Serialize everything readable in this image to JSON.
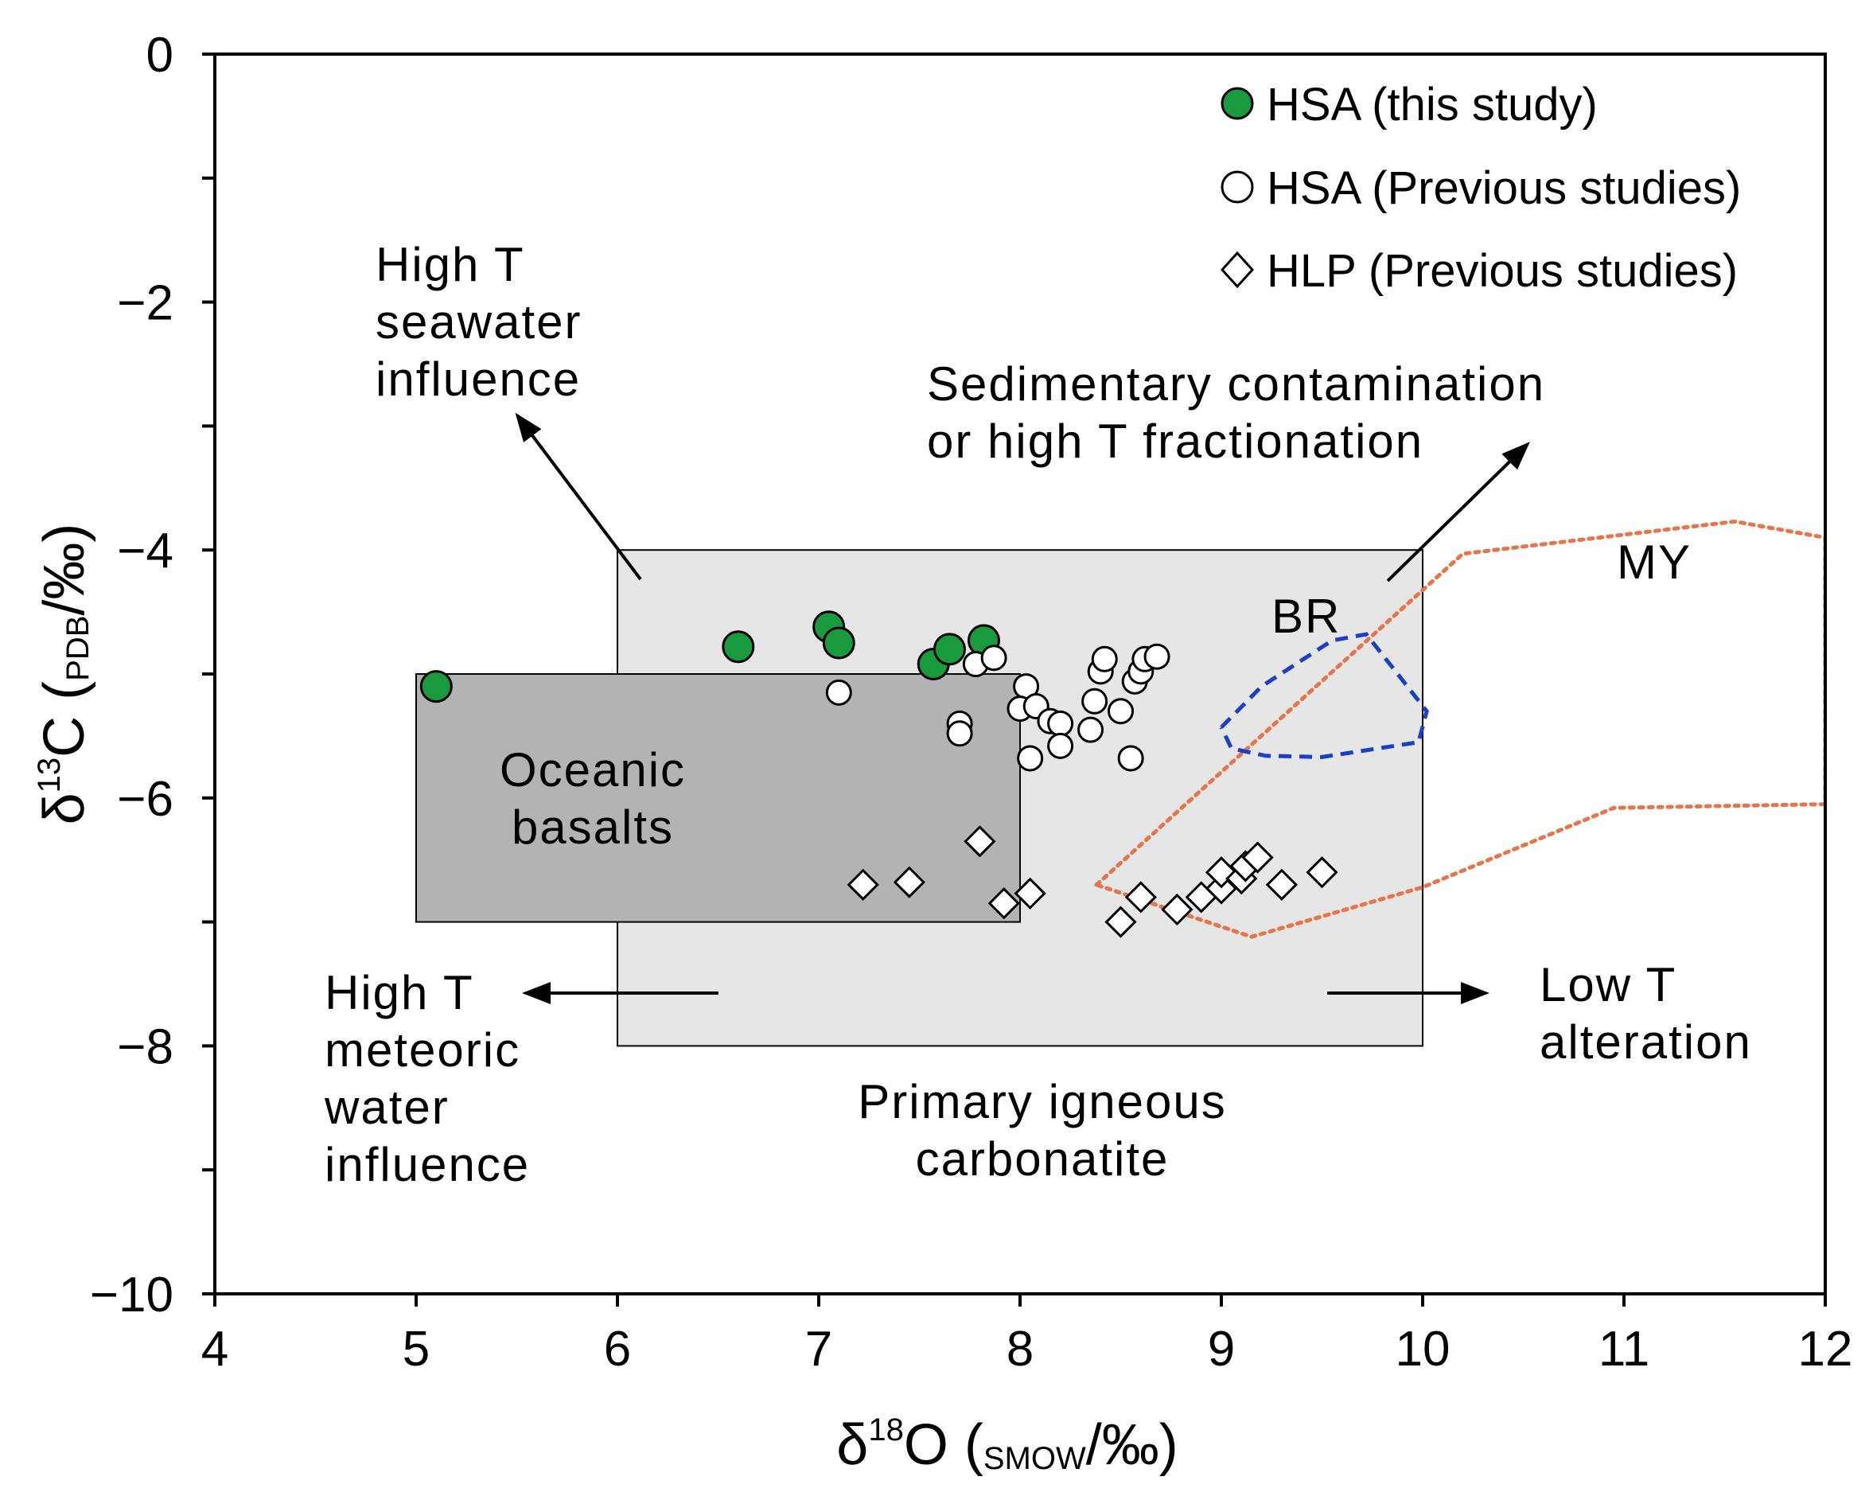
{
  "chart_data": {
    "type": "scatter",
    "xlabel": {
      "main": "δ",
      "sup": "18",
      "post": "O (",
      "sub": "SMOW",
      "end": "/‰)"
    },
    "ylabel": {
      "main": "δ",
      "sup": "13",
      "post": "C (",
      "sub": "PDB",
      "end": "/‰)"
    },
    "xlim": [
      4,
      12
    ],
    "ylim": [
      -10,
      0
    ],
    "x_ticks": [
      "4",
      "5",
      "6",
      "7",
      "8",
      "9",
      "10",
      "11",
      "12"
    ],
    "y_ticks": [
      "0",
      "−2",
      "−4",
      "−6",
      "−8",
      "−10"
    ],
    "grid": false,
    "legend_position": "top-right",
    "legend": [
      {
        "label": "HSA (this study)",
        "marker": "circle",
        "fill": "#1a9a3f"
      },
      {
        "label": "HSA (Previous studies)",
        "marker": "circle",
        "fill": "#ffffff"
      },
      {
        "label": "HLP (Previous studies)",
        "marker": "diamond",
        "fill": "#ffffff"
      }
    ],
    "series": [
      {
        "name": "HSA (this study)",
        "marker": "circle",
        "color": "#1a9a3f",
        "points": [
          [
            5.1,
            -5.1
          ],
          [
            6.6,
            -4.78
          ],
          [
            7.05,
            -4.62
          ],
          [
            7.1,
            -4.75
          ],
          [
            7.57,
            -4.92
          ],
          [
            7.65,
            -4.8
          ],
          [
            7.82,
            -4.73
          ]
        ]
      },
      {
        "name": "HSA (Previous studies)",
        "marker": "circle",
        "color": "#ffffff",
        "points": [
          [
            7.1,
            -5.15
          ],
          [
            7.7,
            -5.4
          ],
          [
            7.7,
            -5.48
          ],
          [
            7.78,
            -4.92
          ],
          [
            7.87,
            -4.87
          ],
          [
            8.03,
            -5.1
          ],
          [
            8.0,
            -5.28
          ],
          [
            8.08,
            -5.26
          ],
          [
            8.05,
            -5.68
          ],
          [
            8.15,
            -5.38
          ],
          [
            8.2,
            -5.4
          ],
          [
            8.2,
            -5.58
          ],
          [
            8.35,
            -5.45
          ],
          [
            8.37,
            -5.22
          ],
          [
            8.4,
            -4.98
          ],
          [
            8.42,
            -4.88
          ],
          [
            8.5,
            -5.3
          ],
          [
            8.55,
            -5.68
          ],
          [
            8.57,
            -5.06
          ],
          [
            8.6,
            -4.98
          ],
          [
            8.62,
            -4.88
          ],
          [
            8.68,
            -4.86
          ]
        ]
      },
      {
        "name": "HLP (Previous studies)",
        "marker": "diamond",
        "color": "#ffffff",
        "points": [
          [
            7.22,
            -6.7
          ],
          [
            7.45,
            -6.68
          ],
          [
            7.8,
            -6.35
          ],
          [
            7.92,
            -6.85
          ],
          [
            8.05,
            -6.77
          ],
          [
            8.5,
            -7.0
          ],
          [
            8.6,
            -6.8
          ],
          [
            8.78,
            -6.9
          ],
          [
            8.9,
            -6.8
          ],
          [
            9.0,
            -6.73
          ],
          [
            9.0,
            -6.6
          ],
          [
            9.1,
            -6.65
          ],
          [
            9.12,
            -6.55
          ],
          [
            9.18,
            -6.48
          ],
          [
            9.3,
            -6.7
          ],
          [
            9.5,
            -6.6
          ]
        ]
      }
    ],
    "regions": [
      {
        "name": "Primary igneous carbonatite",
        "fill": "#e6e6e6",
        "x": [
          6,
          10
        ],
        "y": [
          -8,
          -4
        ]
      },
      {
        "name": "Oceanic basalts",
        "fill": "#b3b3b3",
        "x": [
          5,
          8
        ],
        "y": [
          -7,
          -5
        ]
      }
    ],
    "fields": [
      {
        "name": "MY",
        "style": "dotted",
        "color": "#e8744a",
        "points": [
          [
            8.38,
            -6.7
          ],
          [
            10.2,
            -4.03
          ],
          [
            11.55,
            -3.77
          ],
          [
            12.0,
            -3.9
          ],
          [
            12.0,
            -6.05
          ],
          [
            10.95,
            -6.08
          ],
          [
            10.0,
            -6.72
          ],
          [
            9.15,
            -7.12
          ],
          [
            8.38,
            -6.7
          ]
        ]
      },
      {
        "name": "BR",
        "style": "dashed",
        "color": "#1a3fcc",
        "points": [
          [
            9.0,
            -5.43
          ],
          [
            9.2,
            -5.1
          ],
          [
            9.55,
            -4.73
          ],
          [
            9.72,
            -4.68
          ],
          [
            9.9,
            -5.05
          ],
          [
            10.02,
            -5.3
          ],
          [
            9.98,
            -5.55
          ],
          [
            9.5,
            -5.67
          ],
          [
            9.22,
            -5.66
          ],
          [
            9.05,
            -5.6
          ],
          [
            9.0,
            -5.43
          ]
        ]
      }
    ],
    "annotations": [
      {
        "lines": [
          "High T",
          "seawater",
          "influence"
        ],
        "arrow": "up-left"
      },
      {
        "lines": [
          "Sedimentary contamination",
          "or high T fractionation"
        ],
        "arrow": "up-right"
      },
      {
        "lines": [
          "High T",
          "meteoric",
          "water",
          "influence"
        ],
        "arrow": "left"
      },
      {
        "lines": [
          "Low T",
          "alteration"
        ],
        "arrow": "right"
      },
      {
        "lines": [
          "Primary igneous",
          "carbonatite"
        ]
      },
      {
        "lines": [
          "Oceanic",
          "basalts"
        ]
      },
      {
        "lines": [
          "BR"
        ]
      },
      {
        "lines": [
          "MY"
        ]
      }
    ]
  }
}
